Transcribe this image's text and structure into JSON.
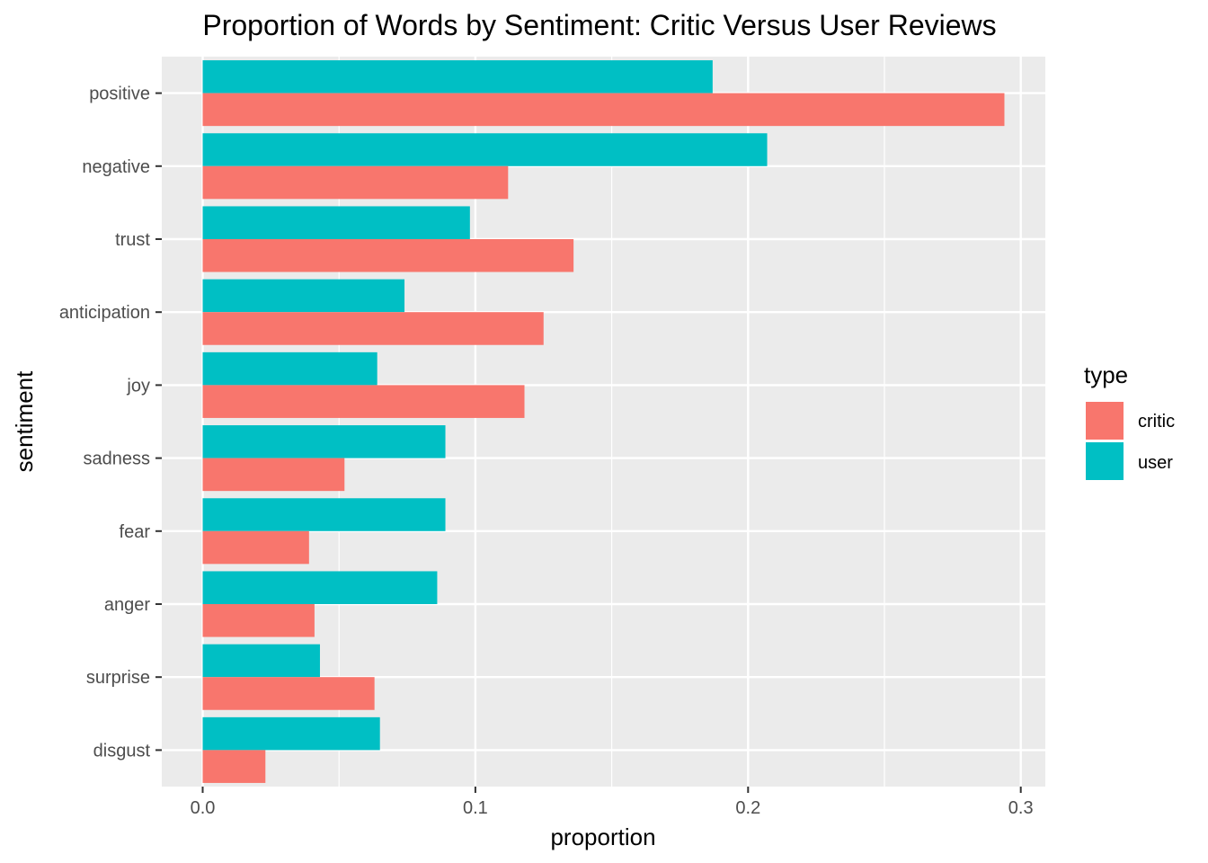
{
  "chart_data": {
    "type": "bar",
    "orientation": "horizontal",
    "title": "Proportion of Words by Sentiment: Critic Versus User Reviews",
    "xlabel": "proportion",
    "ylabel": "sentiment",
    "categories": [
      "positive",
      "negative",
      "trust",
      "anticipation",
      "joy",
      "sadness",
      "fear",
      "anger",
      "surprise",
      "disgust"
    ],
    "series": [
      {
        "name": "critic",
        "color": "#F8766D",
        "values": [
          0.294,
          0.112,
          0.136,
          0.125,
          0.118,
          0.052,
          0.039,
          0.041,
          0.063,
          0.023
        ]
      },
      {
        "name": "user",
        "color": "#00BFC4",
        "values": [
          0.187,
          0.207,
          0.098,
          0.074,
          0.064,
          0.089,
          0.089,
          0.086,
          0.043,
          0.065
        ]
      }
    ],
    "xlim": [
      -0.015,
      0.309
    ],
    "xticks": [
      0.0,
      0.1,
      0.2,
      0.3
    ],
    "xtick_labels": [
      "0.0",
      "0.1",
      "0.2",
      "0.3"
    ],
    "grid": true,
    "legend": {
      "title": "type",
      "placement": "right",
      "entries": [
        "critic",
        "user"
      ]
    }
  }
}
